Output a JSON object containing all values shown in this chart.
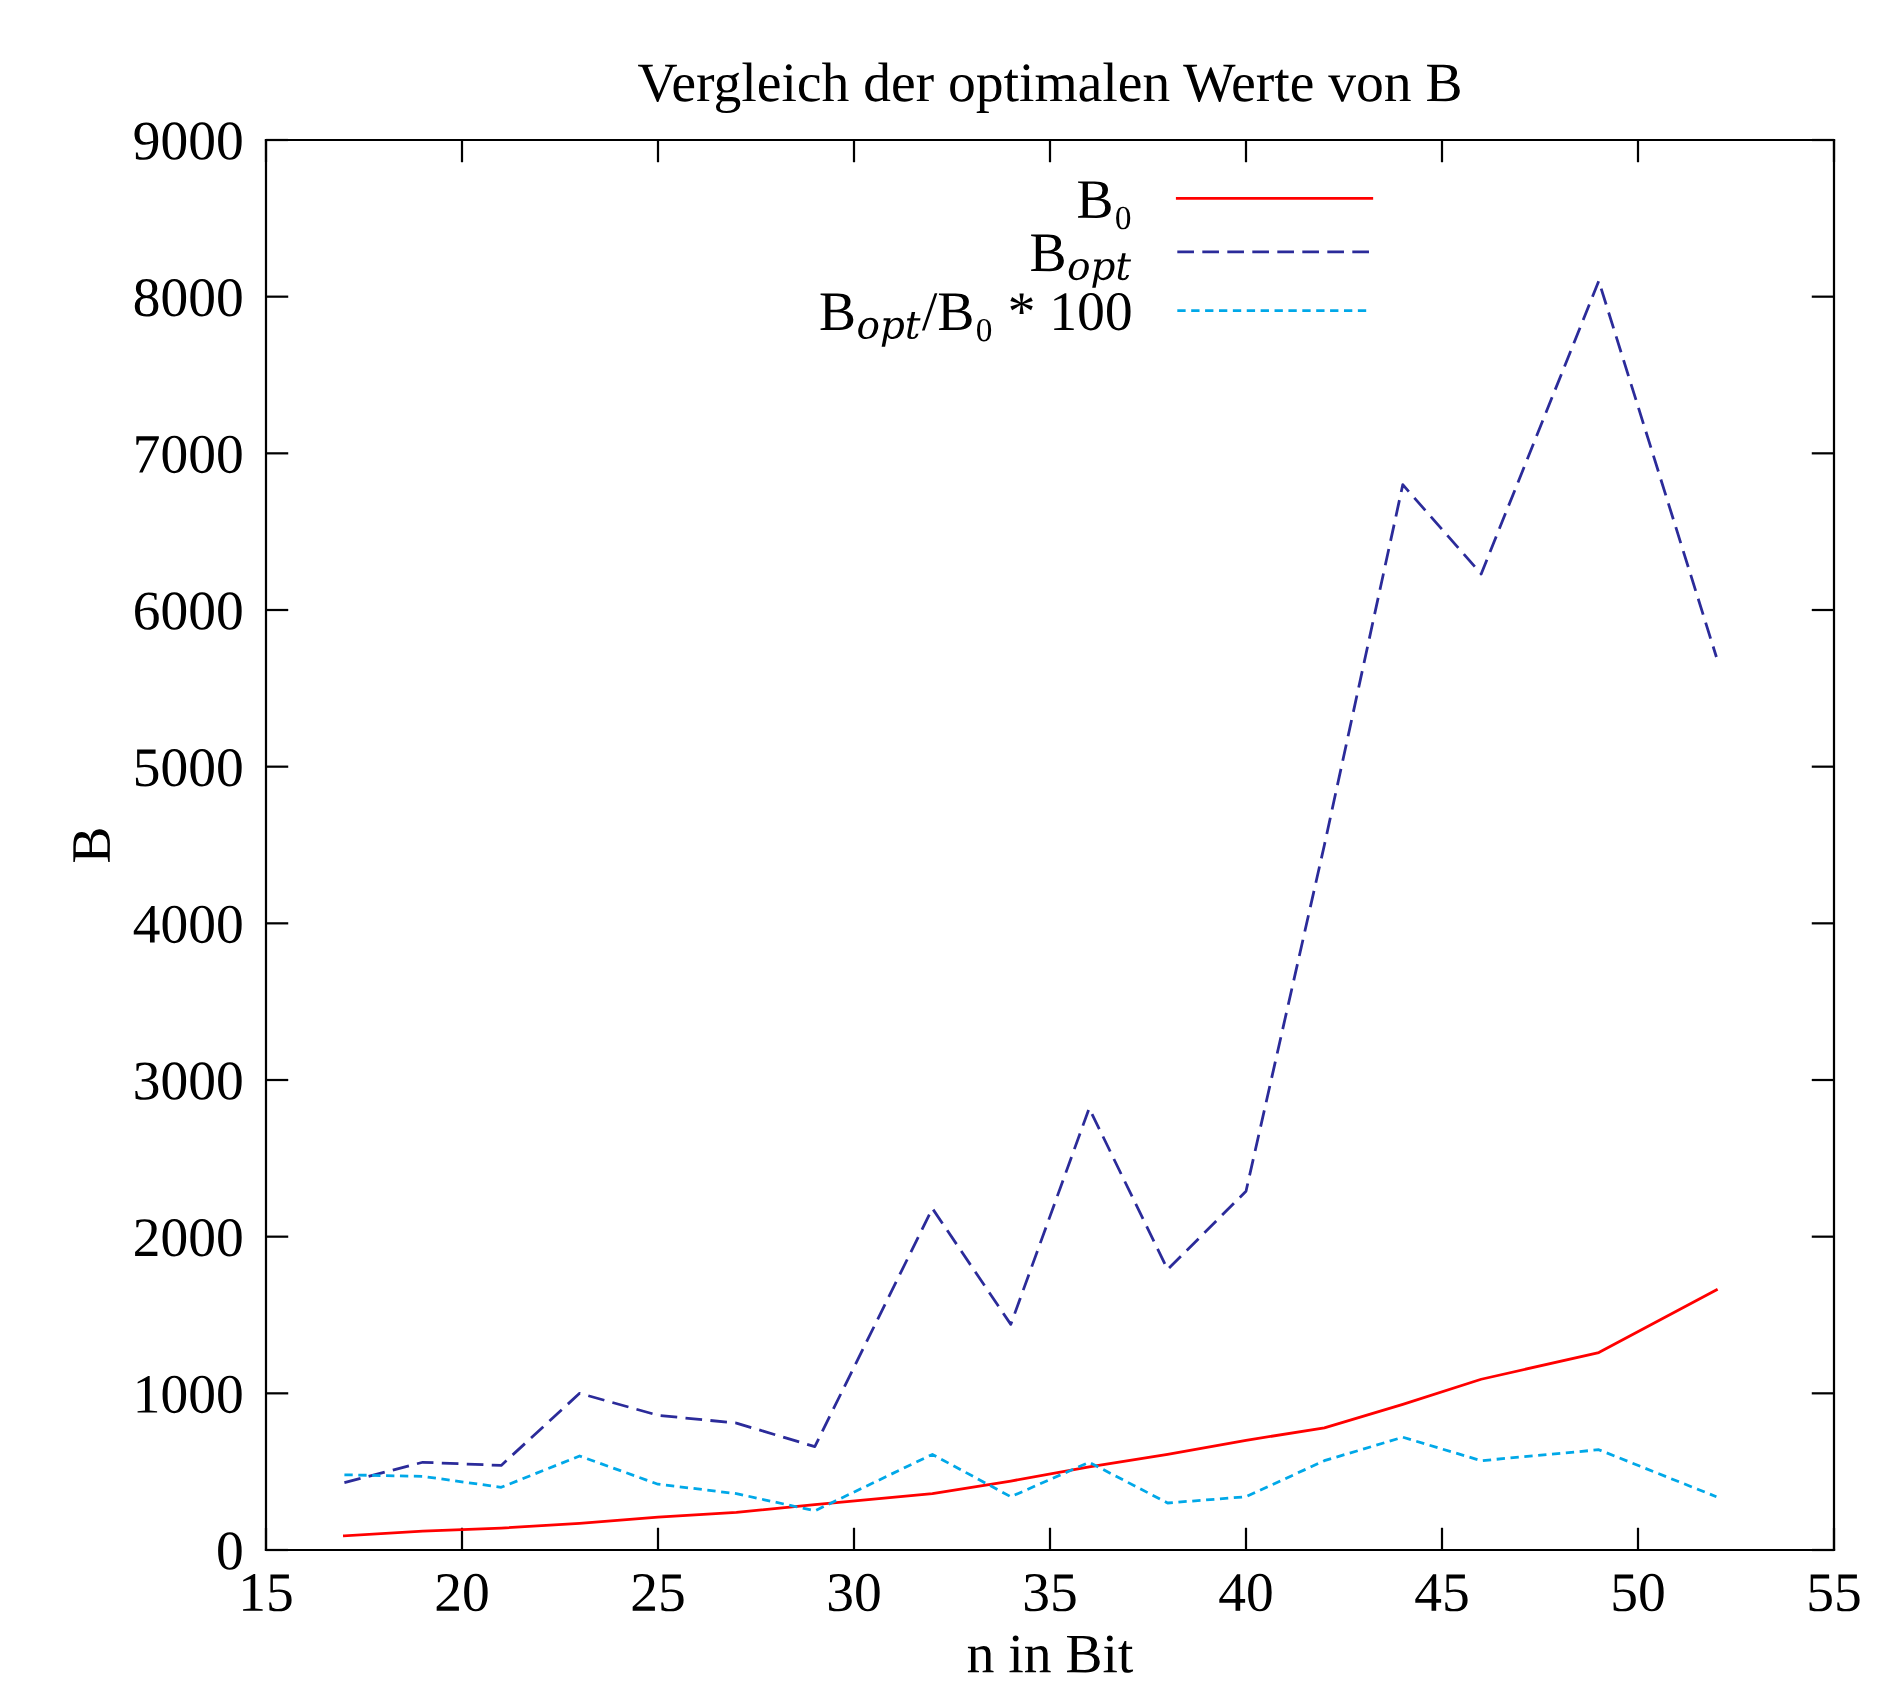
{
  "chart_data": {
    "type": "line",
    "title": "Vergleich der optimalen Werte von B",
    "xlabel": "n in Bit",
    "ylabel": "B",
    "x": [
      17,
      19,
      21,
      23,
      25,
      27,
      29,
      32,
      34,
      36,
      38,
      40,
      42,
      44,
      46,
      49,
      52
    ],
    "series": [
      {
        "name": "B₀",
        "color": "#ff0000",
        "line_style": "solid",
        "values": [
          90,
          120,
          140,
          170,
          210,
          240,
          290,
          360,
          440,
          530,
          610,
          700,
          780,
          930,
          1090,
          1260,
          1660
        ]
      },
      {
        "name": "B$_{opt}$",
        "color": "#2b2b9a",
        "line_style": "dashed",
        "values": [
          430,
          560,
          540,
          1000,
          860,
          810,
          660,
          2180,
          1440,
          2820,
          1790,
          2290,
          4500,
          6800,
          6230,
          8100,
          5700
        ]
      },
      {
        "name": "B$_{opt}$/B₀ * 100",
        "color": "#00a8e8",
        "line_style": "dotted",
        "values": [
          480,
          470,
          400,
          600,
          420,
          360,
          250,
          610,
          340,
          560,
          300,
          340,
          570,
          720,
          570,
          640,
          340
        ]
      }
    ],
    "xlim": [
      15,
      55
    ],
    "xticks": [
      15,
      20,
      25,
      30,
      35,
      40,
      45,
      50,
      55
    ],
    "ylim": [
      0,
      9000
    ],
    "yticks": [
      0,
      1000,
      2000,
      3000,
      4000,
      5000,
      6000,
      7000,
      8000,
      9000
    ],
    "grid": false,
    "legend": "top right",
    "marker": "none"
  }
}
